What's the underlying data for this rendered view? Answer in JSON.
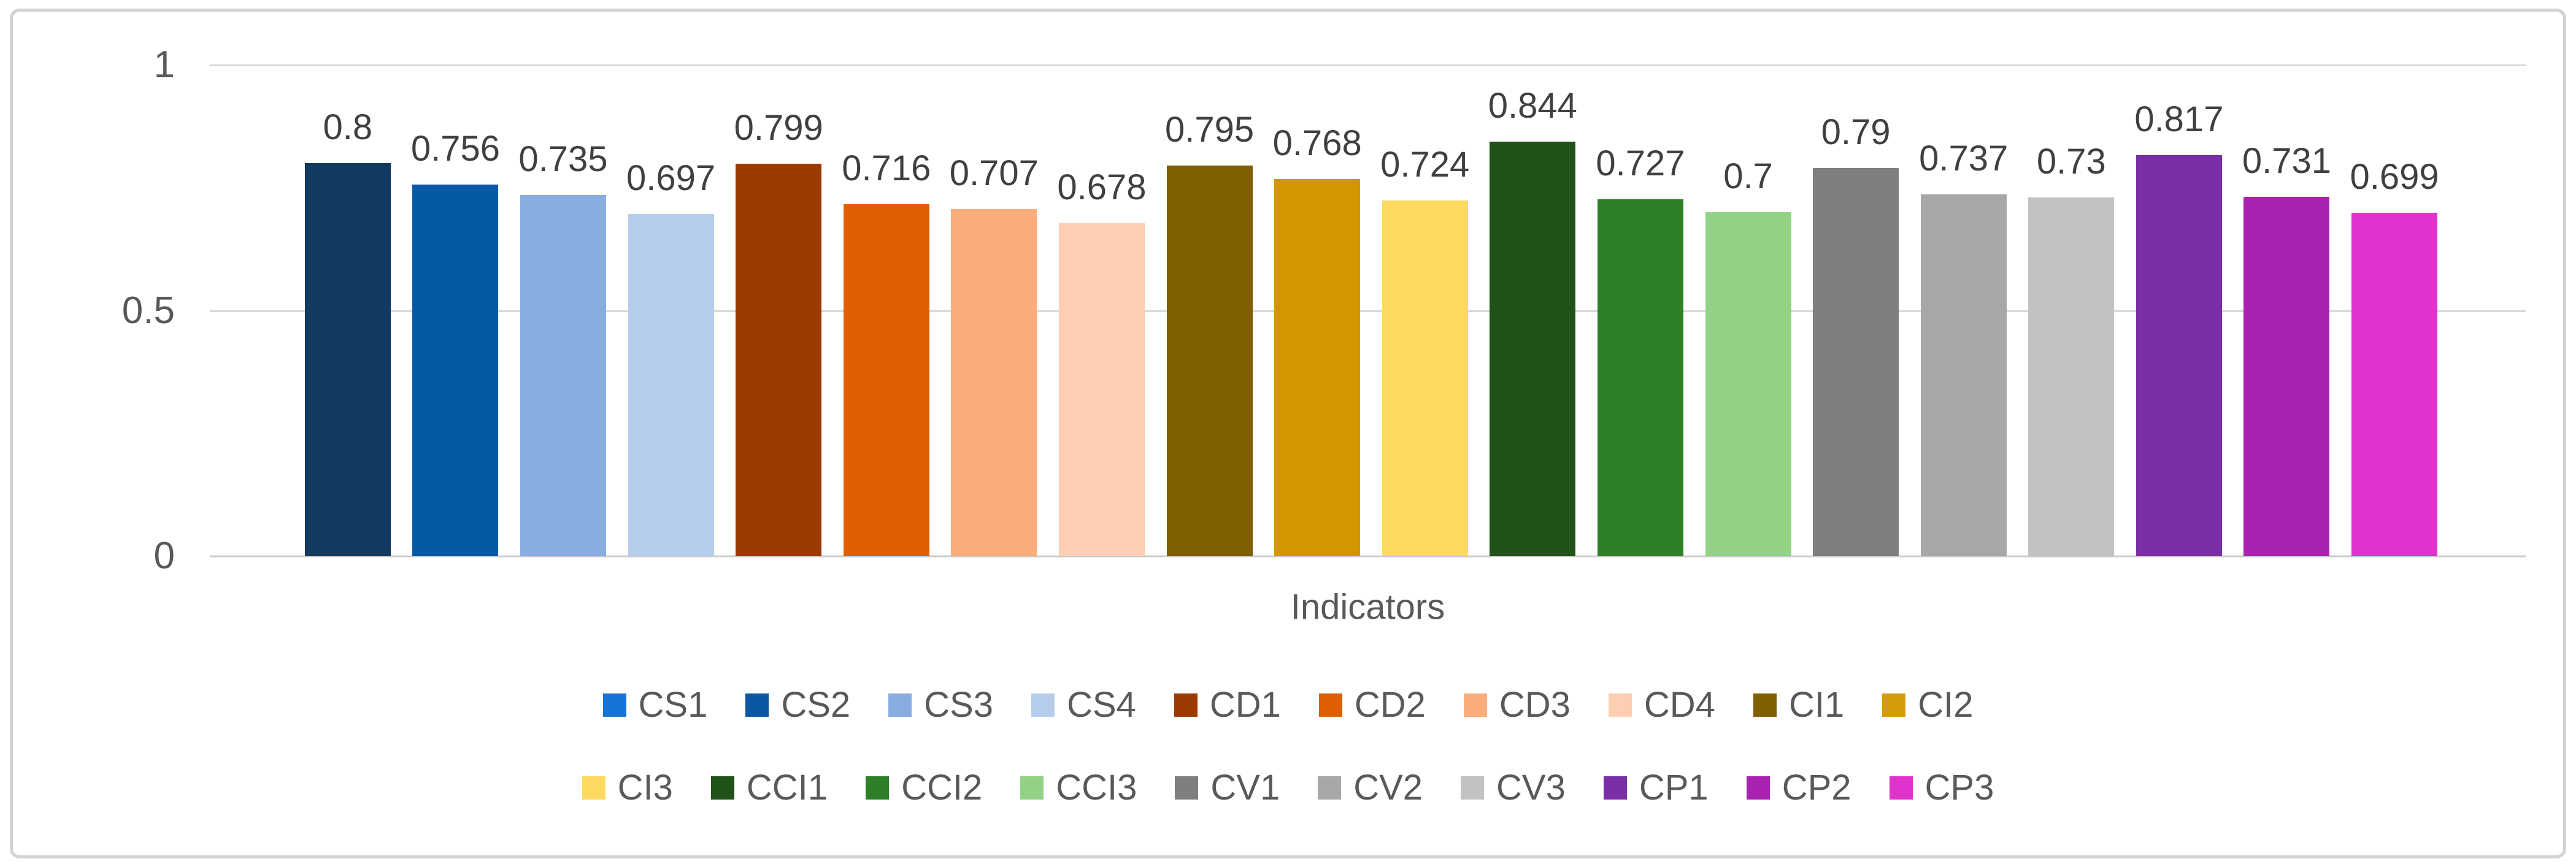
{
  "chart_data": {
    "type": "bar",
    "title": "",
    "xlabel": "Indicators",
    "ylabel": "",
    "ylim": [
      0,
      1
    ],
    "yticks": [
      {
        "value": 0,
        "label": "0"
      },
      {
        "value": 0.5,
        "label": "0.5"
      },
      {
        "value": 1,
        "label": "1"
      }
    ],
    "grid": true,
    "legend_position": "bottom",
    "legend_rows": [
      [
        "CS1",
        "CS2",
        "CS3",
        "CS4",
        "CD1",
        "CD2",
        "CD3",
        "CD4",
        "CI1",
        "CI2"
      ],
      [
        "CI3",
        "CCI1",
        "CCI2",
        "CCI3",
        "CV1",
        "CV2",
        "CV3",
        "CP1",
        "CP2",
        "CP3"
      ]
    ],
    "series": [
      {
        "name": "CS1",
        "value": 0.8,
        "label": "0.8",
        "color": "#123A60",
        "legend_color": "#1473D4"
      },
      {
        "name": "CS2",
        "value": 0.756,
        "label": "0.756",
        "color": "#0659A5",
        "legend_color": "#0C57A4"
      },
      {
        "name": "CS3",
        "value": 0.735,
        "label": "0.735",
        "color": "#88ADE0",
        "legend_color": "#88ADE0"
      },
      {
        "name": "CS4",
        "value": 0.697,
        "label": "0.697",
        "color": "#B5CCEB",
        "legend_color": "#B5CCEB"
      },
      {
        "name": "CD1",
        "value": 0.799,
        "label": "0.799",
        "color": "#9C3A01",
        "legend_color": "#9C3A01"
      },
      {
        "name": "CD2",
        "value": 0.716,
        "label": "0.716",
        "color": "#DF5E02",
        "legend_color": "#DF5E02"
      },
      {
        "name": "CD3",
        "value": 0.707,
        "label": "0.707",
        "color": "#FBAD79",
        "legend_color": "#FBAD79"
      },
      {
        "name": "CD4",
        "value": 0.678,
        "label": "0.678",
        "color": "#FDCEB1",
        "legend_color": "#FDCEB1"
      },
      {
        "name": "CI1",
        "value": 0.795,
        "label": "0.795",
        "color": "#7F5F00",
        "legend_color": "#7F5F00"
      },
      {
        "name": "CI2",
        "value": 0.768,
        "label": "0.768",
        "color": "#D29700",
        "legend_color": "#D49B0B"
      },
      {
        "name": "CI3",
        "value": 0.724,
        "label": "0.724",
        "color": "#FFD960",
        "legend_color": "#FFD960"
      },
      {
        "name": "CCI1",
        "value": 0.844,
        "label": "0.844",
        "color": "#1F5318",
        "legend_color": "#1F5318"
      },
      {
        "name": "CCI2",
        "value": 0.727,
        "label": "0.727",
        "color": "#2E8028",
        "legend_color": "#2E8028"
      },
      {
        "name": "CCI3",
        "value": 0.7,
        "label": "0.7",
        "color": "#93D286",
        "legend_color": "#93D286"
      },
      {
        "name": "CV1",
        "value": 0.79,
        "label": "0.79",
        "color": "#7F7F7F",
        "legend_color": "#7F7F7F"
      },
      {
        "name": "CV2",
        "value": 0.737,
        "label": "0.737",
        "color": "#A7A7A7",
        "legend_color": "#A7A7A7"
      },
      {
        "name": "CV3",
        "value": 0.73,
        "label": "0.73",
        "color": "#C2C2C2",
        "legend_color": "#C2C2C2"
      },
      {
        "name": "CP1",
        "value": 0.817,
        "label": "0.817",
        "color": "#7B2FA7",
        "legend_color": "#7B2FA7"
      },
      {
        "name": "CP2",
        "value": 0.731,
        "label": "0.731",
        "color": "#A923B1",
        "legend_color": "#A923B1"
      },
      {
        "name": "CP3",
        "value": 0.699,
        "label": "0.699",
        "color": "#E033CE",
        "legend_color": "#E033CE"
      }
    ]
  },
  "colors": {
    "gridline": "#D9D9D9",
    "zero_axis": "#C8C8C8",
    "tick_text": "#595959",
    "value_label_text": "#404040",
    "legend_text": "#595959",
    "frame_border": "#D2D2D2",
    "background": "#FFFFFF"
  }
}
